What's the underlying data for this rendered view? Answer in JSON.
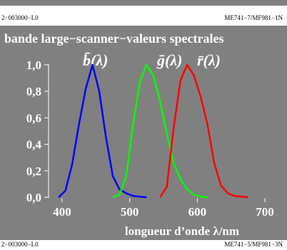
{
  "header": {
    "left_code": "2−003000−L0",
    "right_code": "ME741−7/MF981−1N"
  },
  "footer": {
    "left_code": "2−003000−L0",
    "right_code": "ME741−5/MF981−3N"
  },
  "colors": {
    "background": "#808080",
    "blue": "#0000ff",
    "green": "#00ff00",
    "red": "#ff0000",
    "text": "#ffffff"
  },
  "chart_data": {
    "type": "line",
    "title": "bande large−scanner−valeurs spectrales",
    "xlabel": "longueur d’onde λ/nm",
    "ylabel": "",
    "xlim": [
      380,
      720
    ],
    "ylim": [
      0,
      1.0
    ],
    "x_ticks": [
      400,
      500,
      600,
      700
    ],
    "y_ticks": [
      0.0,
      0.2,
      0.4,
      0.6,
      0.8,
      1.0
    ],
    "y_tick_labels": [
      "0,0",
      "0,2",
      "0,4",
      "0,6",
      "0,8",
      "1,0"
    ],
    "grid": false,
    "series": [
      {
        "name": "b̄(λ)",
        "color": "#0000ff",
        "x": [
          395,
          405,
          415,
          425,
          435,
          445,
          455,
          465,
          475,
          485,
          495,
          505,
          515,
          525
        ],
        "y": [
          0.0,
          0.05,
          0.25,
          0.55,
          0.82,
          1.0,
          0.8,
          0.45,
          0.16,
          0.06,
          0.03,
          0.01,
          0.005,
          0.0
        ]
      },
      {
        "name": "ḡ(λ)",
        "color": "#00ff00",
        "x": [
          475,
          485,
          495,
          505,
          515,
          525,
          535,
          545,
          555,
          565,
          575,
          585,
          595,
          605,
          615
        ],
        "y": [
          0.0,
          0.02,
          0.16,
          0.55,
          0.87,
          1.0,
          0.92,
          0.72,
          0.48,
          0.26,
          0.14,
          0.06,
          0.02,
          0.005,
          0.0
        ]
      },
      {
        "name": "r̄(λ)",
        "color": "#ff0000",
        "x": [
          545,
          555,
          565,
          575,
          585,
          595,
          605,
          615,
          625,
          635,
          645,
          655,
          665,
          675
        ],
        "y": [
          0.0,
          0.08,
          0.52,
          0.88,
          1.0,
          0.92,
          0.76,
          0.55,
          0.26,
          0.09,
          0.03,
          0.01,
          0.005,
          0.0
        ]
      }
    ]
  }
}
